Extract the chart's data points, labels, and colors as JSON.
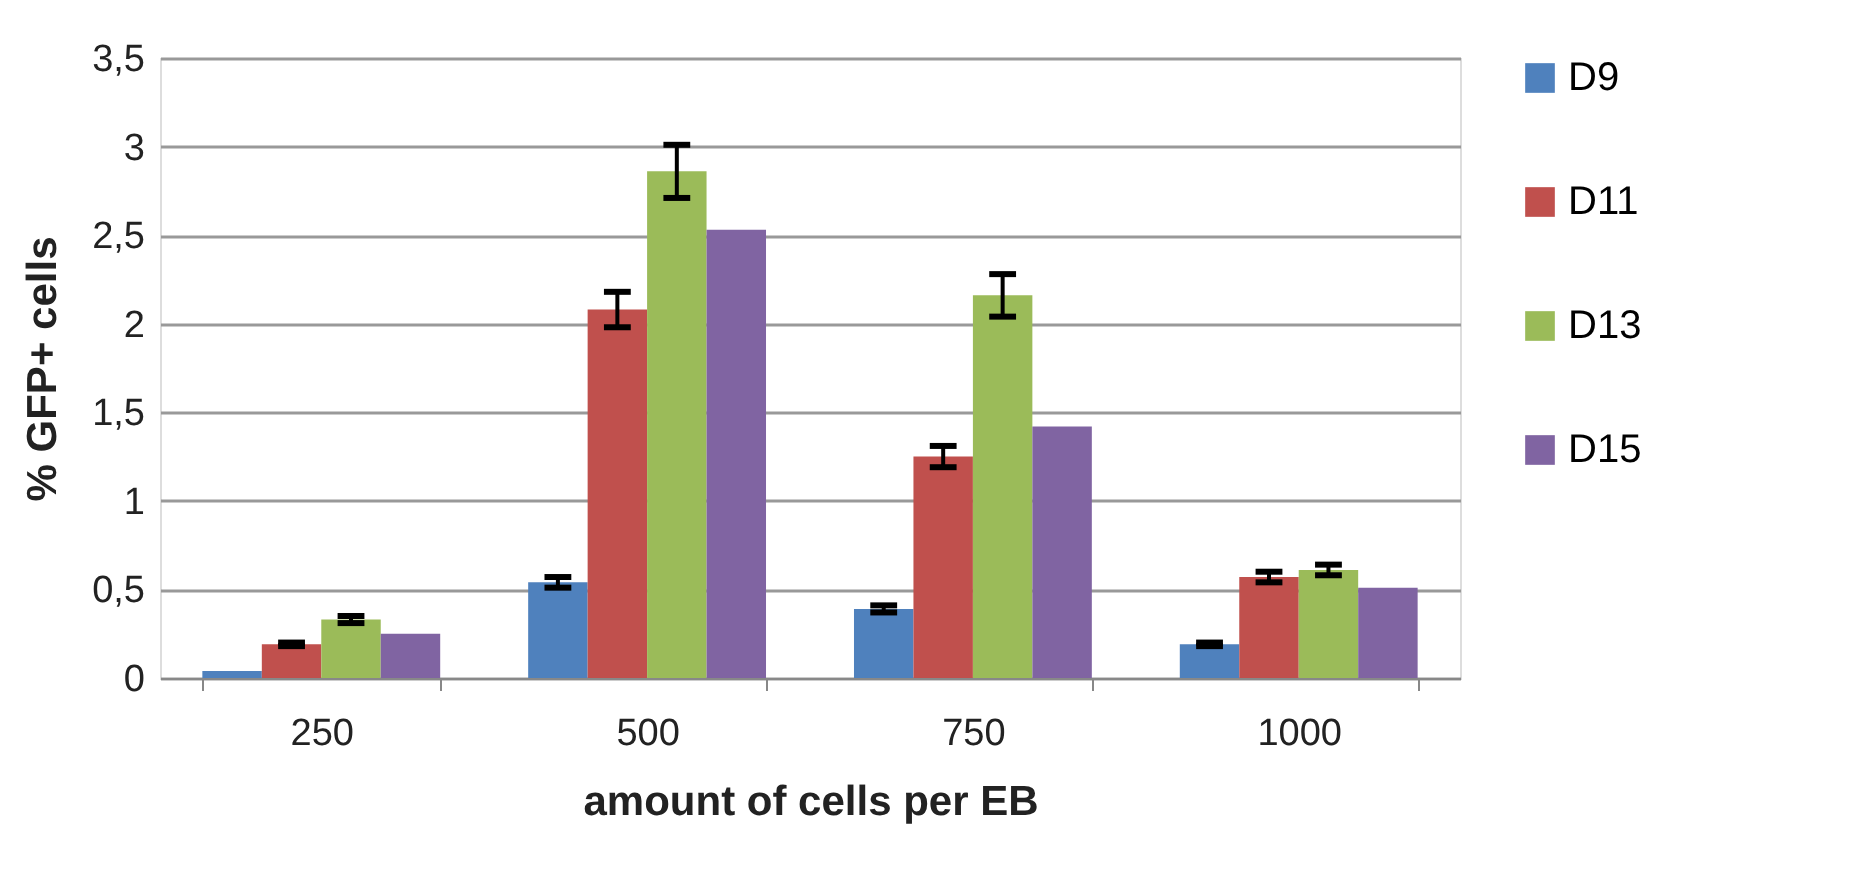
{
  "chart_data": {
    "type": "bar",
    "xlabel": "amount of cells per EB",
    "ylabel": "% GFP+ cells",
    "categories": [
      "250",
      "500",
      "750",
      "1000"
    ],
    "series": [
      {
        "name": "D9",
        "color": "#4f81bd",
        "values": [
          0.04,
          0.54,
          0.39,
          0.19
        ],
        "errors": [
          null,
          0.03,
          0.02,
          0.01
        ]
      },
      {
        "name": "D11",
        "color": "#c0504d",
        "values": [
          0.19,
          2.08,
          1.25,
          0.57
        ],
        "errors": [
          0.01,
          0.1,
          0.06,
          0.03
        ]
      },
      {
        "name": "D13",
        "color": "#9bbb59",
        "values": [
          0.33,
          2.86,
          2.16,
          0.61
        ],
        "errors": [
          0.02,
          0.15,
          0.12,
          0.03
        ]
      },
      {
        "name": "D15",
        "color": "#8064a2",
        "values": [
          0.25,
          2.53,
          1.42,
          0.51
        ],
        "errors": [
          null,
          null,
          null,
          null
        ]
      }
    ],
    "ylim": [
      0,
      3.5
    ],
    "yticks": [
      0,
      {
        "value": 0.5,
        "label": "0,5"
      },
      1,
      {
        "value": 1.5,
        "label": "1,5"
      },
      2,
      {
        "value": 2.5,
        "label": "2,5"
      },
      3,
      {
        "value": 3.5,
        "label": "3,5"
      }
    ],
    "grid": "y",
    "legend": "right"
  }
}
